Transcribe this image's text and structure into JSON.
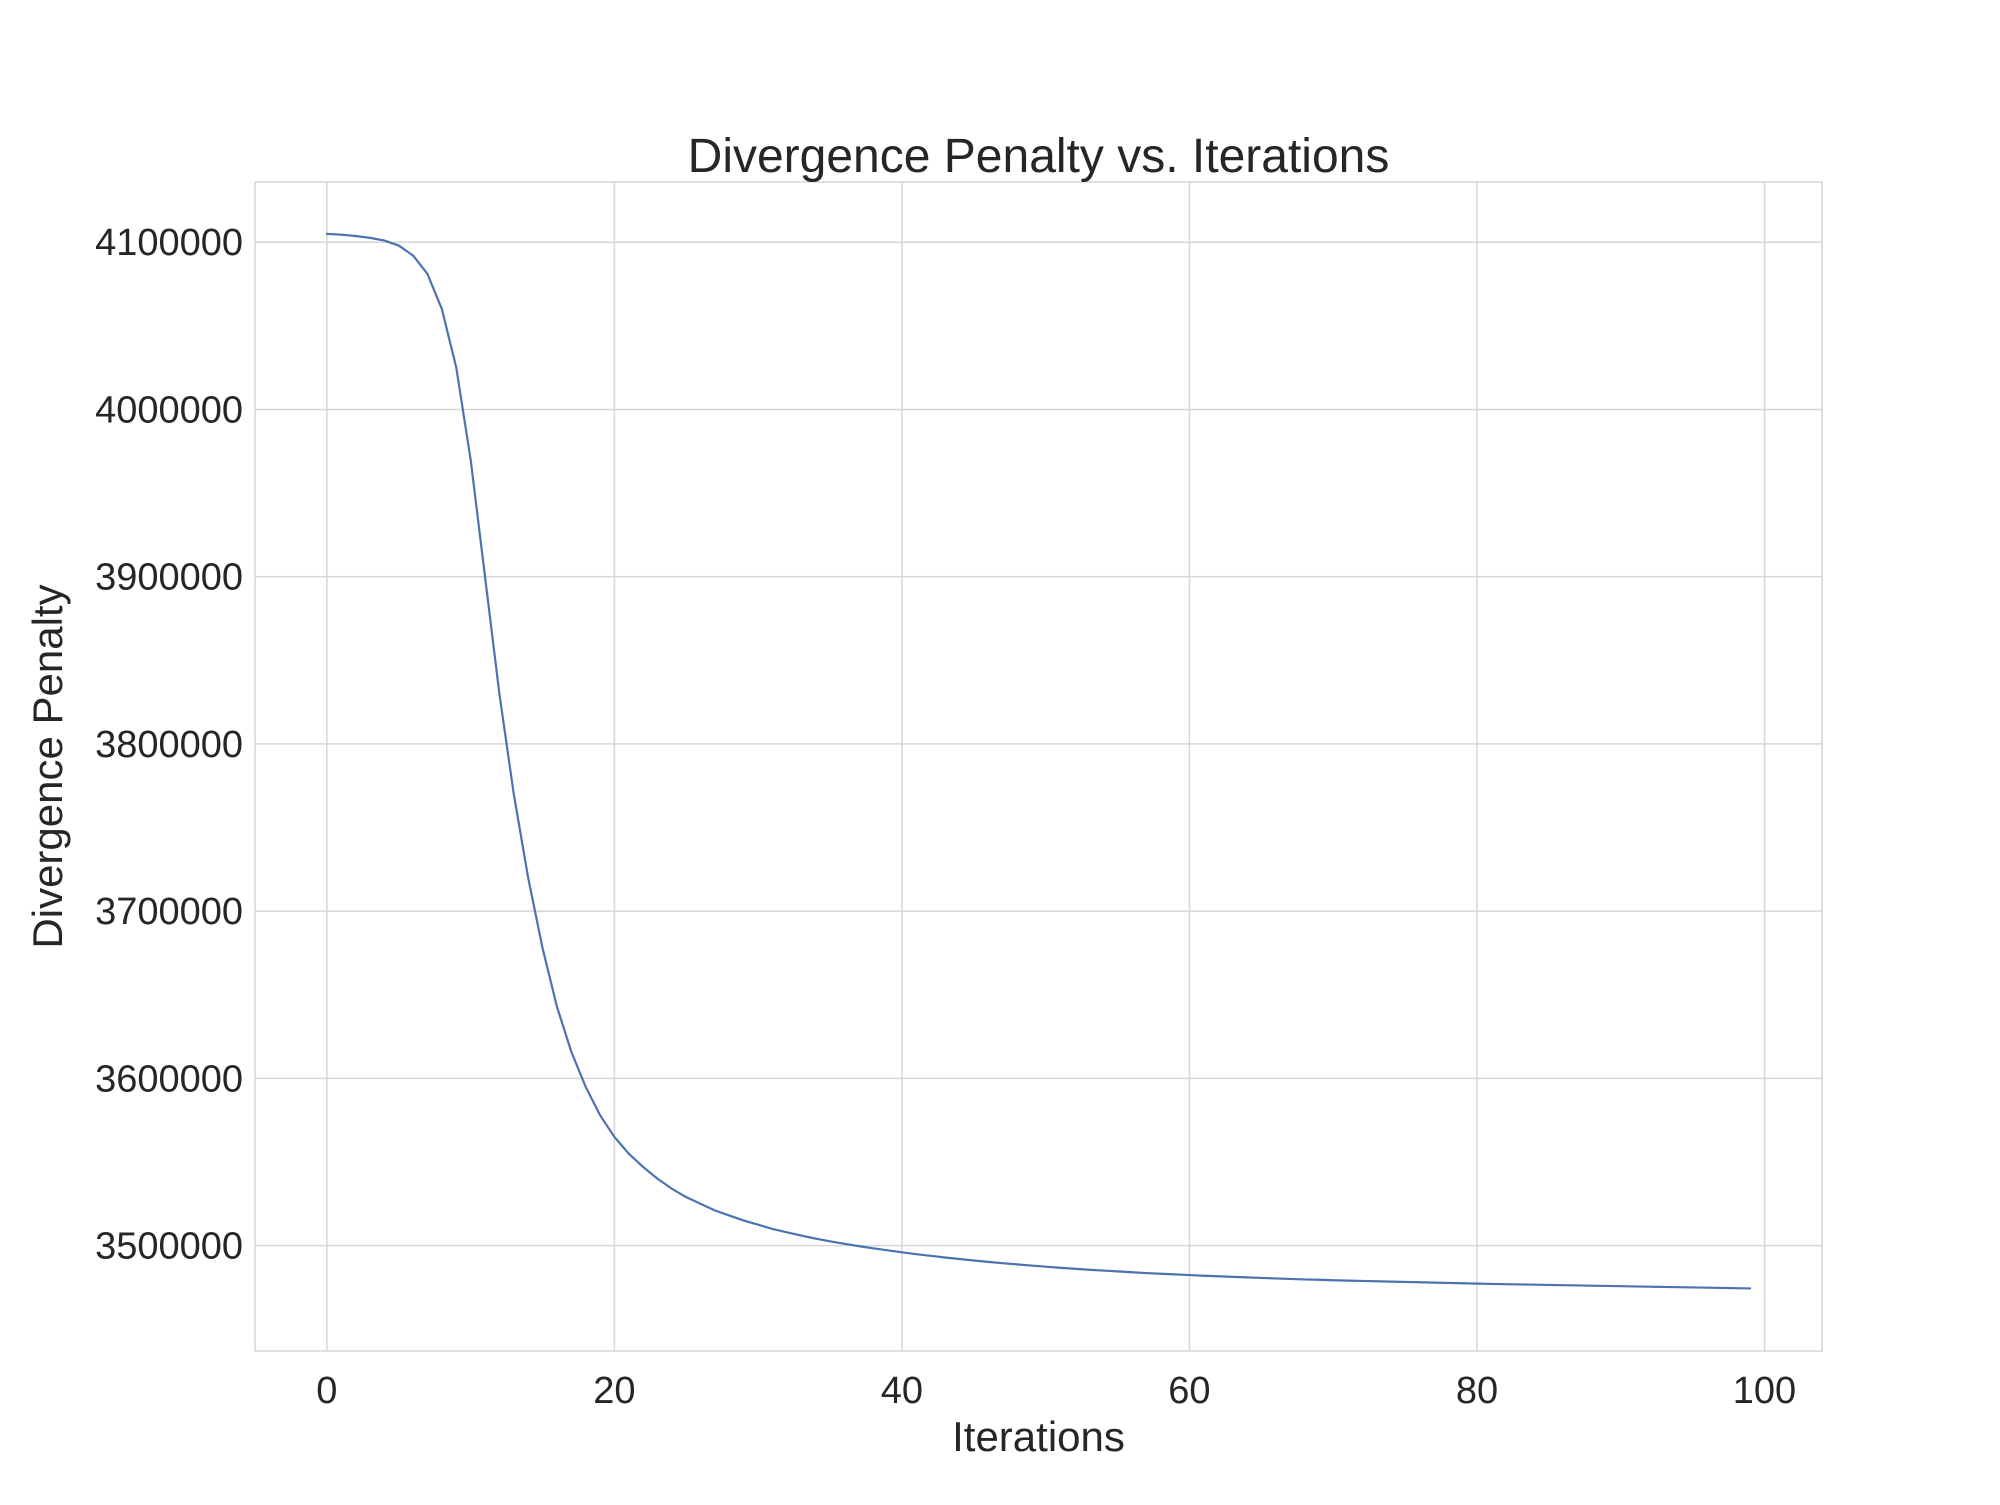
{
  "chart_data": {
    "type": "line",
    "title": "Divergence Penalty vs. Iterations",
    "xlabel": "Iterations",
    "ylabel": "Divergence Penalty",
    "xlim": [
      -5,
      104
    ],
    "ylim": [
      3437000,
      4136000
    ],
    "xticks": [
      0,
      20,
      40,
      60,
      80,
      100
    ],
    "xtick_labels": [
      "0",
      "20",
      "40",
      "60",
      "80",
      "100"
    ],
    "yticks": [
      3500000,
      3600000,
      3700000,
      3800000,
      3900000,
      4000000,
      4100000
    ],
    "ytick_labels": [
      "3500000",
      "3600000",
      "3700000",
      "3800000",
      "3900000",
      "4000000",
      "4100000"
    ],
    "grid": true,
    "series": [
      {
        "color": "#4c72b0",
        "x": [
          0,
          1,
          2,
          3,
          4,
          5,
          6,
          7,
          8,
          9,
          10,
          11,
          12,
          13,
          14,
          15,
          16,
          17,
          18,
          19,
          20,
          21,
          22,
          23,
          24,
          25,
          26,
          27,
          28,
          29,
          30,
          31,
          32,
          33,
          34,
          35,
          36,
          37,
          38,
          39,
          40,
          41,
          42,
          43,
          44,
          45,
          46,
          47,
          48,
          49,
          50,
          51,
          52,
          53,
          54,
          55,
          56,
          57,
          58,
          59,
          60,
          61,
          62,
          63,
          64,
          65,
          66,
          67,
          68,
          69,
          70,
          71,
          72,
          73,
          74,
          75,
          76,
          77,
          78,
          79,
          80,
          81,
          82,
          83,
          84,
          85,
          86,
          87,
          88,
          89,
          90,
          91,
          92,
          93,
          94,
          95,
          96,
          97,
          98,
          99
        ],
        "y": [
          4105000,
          4104500,
          4103700,
          4102600,
          4101000,
          4098000,
          4092000,
          4081000,
          4060000,
          4025000,
          3970000,
          3900000,
          3830000,
          3770000,
          3720000,
          3678000,
          3643000,
          3616000,
          3595000,
          3578000,
          3565000,
          3555000,
          3547000,
          3540000,
          3534000,
          3529000,
          3525000,
          3521000,
          3518000,
          3515000,
          3512500,
          3510000,
          3508000,
          3506000,
          3504200,
          3502600,
          3501100,
          3499700,
          3498400,
          3497200,
          3496000,
          3494900,
          3493900,
          3492900,
          3492000,
          3491100,
          3490300,
          3489500,
          3488800,
          3488100,
          3487400,
          3486800,
          3486200,
          3485600,
          3485100,
          3484600,
          3484100,
          3483600,
          3483200,
          3482800,
          3482400,
          3482000,
          3481700,
          3481300,
          3481000,
          3480700,
          3480400,
          3480100,
          3479800,
          3479600,
          3479300,
          3479100,
          3478900,
          3478700,
          3478500,
          3478300,
          3478100,
          3477900,
          3477700,
          3477500,
          3477300,
          3477100,
          3476950,
          3476800,
          3476650,
          3476500,
          3476350,
          3476200,
          3476050,
          3475900,
          3475750,
          3475600,
          3475450,
          3475300,
          3475150,
          3475000,
          3474850,
          3474700,
          3474550,
          3474400
        ]
      }
    ]
  }
}
